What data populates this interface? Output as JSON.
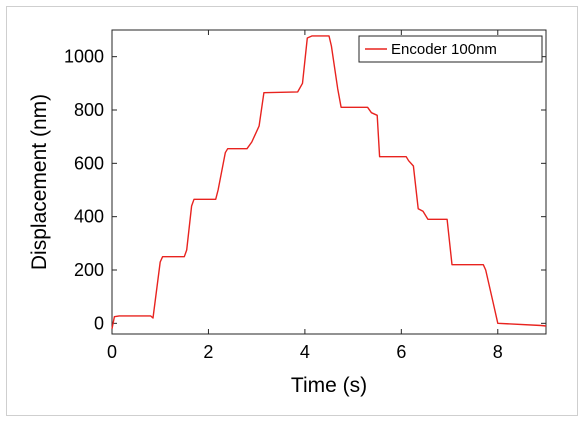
{
  "chart_data": {
    "type": "line",
    "title": "",
    "xlabel": "Time (s)",
    "ylabel": "Displacement (nm)",
    "xlim": [
      0,
      9
    ],
    "ylim": [
      -40,
      1100
    ],
    "xticks": [
      "0",
      "2",
      "4",
      "6",
      "8"
    ],
    "yticks": [
      "0",
      "200",
      "400",
      "600",
      "800",
      "1000"
    ],
    "grid": false,
    "legend_position": "top-right",
    "series": [
      {
        "name": "Encoder 100nm",
        "color": "#e8231f",
        "x": [
          0,
          0.05,
          0.15,
          0.8,
          0.85,
          1.0,
          1.05,
          1.5,
          1.55,
          1.65,
          1.7,
          2.15,
          2.2,
          2.35,
          2.4,
          2.8,
          2.9,
          3.05,
          3.15,
          3.85,
          3.95,
          4.05,
          4.15,
          4.5,
          4.55,
          4.68,
          4.75,
          5.3,
          5.38,
          5.5,
          5.55,
          6.1,
          6.15,
          6.25,
          6.35,
          6.45,
          6.55,
          6.95,
          7.05,
          7.7,
          7.75,
          7.9,
          8.0,
          8.9,
          9.0
        ],
        "y": [
          -20,
          25,
          28,
          28,
          20,
          230,
          250,
          250,
          275,
          440,
          465,
          465,
          500,
          640,
          655,
          655,
          680,
          740,
          865,
          868,
          900,
          1070,
          1078,
          1078,
          1040,
          880,
          810,
          810,
          790,
          780,
          625,
          625,
          610,
          590,
          430,
          420,
          390,
          390,
          220,
          220,
          200,
          80,
          0,
          -8,
          -10
        ]
      }
    ]
  }
}
